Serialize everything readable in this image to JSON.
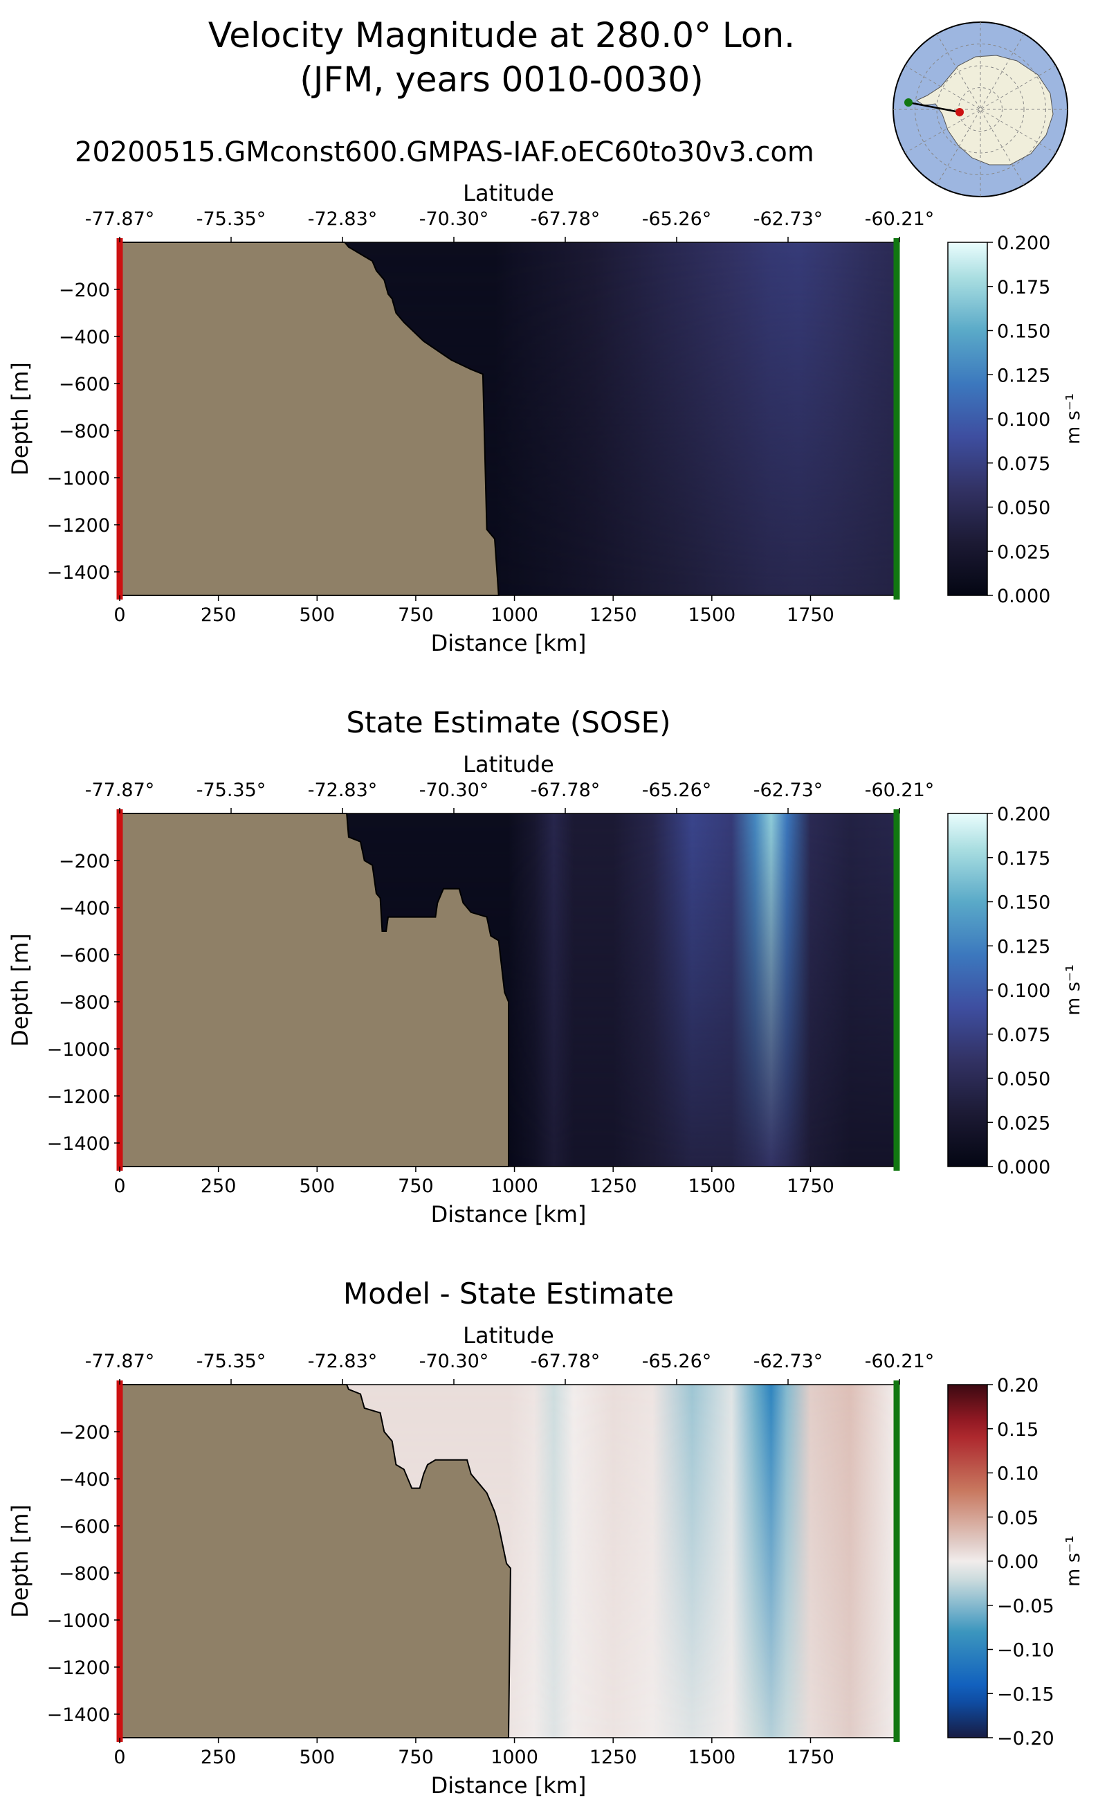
{
  "figure": {
    "title_line1": "Velocity Magnitude at 280.0° Lon.",
    "title_line2": "(JFM, years 0010-0030)",
    "run_name": "20200515.GMconst600.GMPAS-IAF.oEC60to30v3.com",
    "colors": {
      "land": "#8f8067",
      "left_marker": "#cc1111",
      "right_marker": "#117711",
      "inset_ocean": "#9db6e0",
      "inset_land": "#f0eedb"
    }
  },
  "map_inset": {
    "type": "polar-stereographic",
    "section_start_marker": "red",
    "section_end_marker": "green"
  },
  "chart_data": [
    {
      "type": "heatmap",
      "title": "",
      "xlabel": "Distance [km]",
      "ylabel": "Depth [m]",
      "top_axis_label": "Latitude",
      "xlim": [
        0,
        1970
      ],
      "ylim": [
        -1500,
        0
      ],
      "x_ticks": [
        0,
        250,
        500,
        750,
        1000,
        1250,
        1500,
        1750
      ],
      "y_ticks": [
        -200,
        -400,
        -600,
        -800,
        -1000,
        -1200,
        -1400
      ],
      "top_ticks": [
        "-77.87°",
        "-75.35°",
        "-72.83°",
        "-70.30°",
        "-67.78°",
        "-65.26°",
        "-62.73°",
        "-60.21°"
      ],
      "colorbar": {
        "label": "m s⁻¹",
        "colormap": "ice",
        "range": [
          0.0,
          0.2
        ],
        "ticks": [
          "0.000",
          "0.025",
          "0.050",
          "0.075",
          "0.100",
          "0.125",
          "0.150",
          "0.175",
          "0.200"
        ]
      },
      "bathymetry": [
        [
          0,
          0
        ],
        [
          570,
          0
        ],
        [
          580,
          -20
        ],
        [
          620,
          -60
        ],
        [
          640,
          -80
        ],
        [
          650,
          -120
        ],
        [
          670,
          -160
        ],
        [
          680,
          -220
        ],
        [
          690,
          -240
        ],
        [
          700,
          -300
        ],
        [
          720,
          -340
        ],
        [
          770,
          -420
        ],
        [
          840,
          -500
        ],
        [
          890,
          -540
        ],
        [
          920,
          -560
        ],
        [
          930,
          -1220
        ],
        [
          950,
          -1260
        ],
        [
          960,
          -1500
        ]
      ],
      "field_profile": {
        "x": [
          950,
          1000,
          1200,
          1400,
          1550,
          1650,
          1720,
          1800,
          1900,
          1965
        ],
        "surface": [
          0.01,
          0.015,
          0.03,
          0.048,
          0.06,
          0.068,
          0.07,
          0.064,
          0.055,
          0.05
        ],
        "bottom": [
          0.008,
          0.01,
          0.02,
          0.032,
          0.04,
          0.045,
          0.046,
          0.045,
          0.042,
          0.04
        ]
      }
    },
    {
      "type": "heatmap",
      "title": "State Estimate (SOSE)",
      "xlabel": "Distance [km]",
      "ylabel": "Depth [m]",
      "top_axis_label": "Latitude",
      "xlim": [
        0,
        1970
      ],
      "ylim": [
        -1500,
        0
      ],
      "x_ticks": [
        0,
        250,
        500,
        750,
        1000,
        1250,
        1500,
        1750
      ],
      "y_ticks": [
        -200,
        -400,
        -600,
        -800,
        -1000,
        -1200,
        -1400
      ],
      "top_ticks": [
        "-77.87°",
        "-75.35°",
        "-72.83°",
        "-70.30°",
        "-67.78°",
        "-65.26°",
        "-62.73°",
        "-60.21°"
      ],
      "colorbar": {
        "label": "m s⁻¹",
        "colormap": "ice",
        "range": [
          0.0,
          0.2
        ],
        "ticks": [
          "0.000",
          "0.025",
          "0.050",
          "0.075",
          "0.100",
          "0.125",
          "0.150",
          "0.175",
          "0.200"
        ]
      },
      "bathymetry": [
        [
          0,
          0
        ],
        [
          575,
          0
        ],
        [
          580,
          -100
        ],
        [
          610,
          -120
        ],
        [
          620,
          -200
        ],
        [
          640,
          -220
        ],
        [
          650,
          -340
        ],
        [
          660,
          -360
        ],
        [
          665,
          -500
        ],
        [
          675,
          -500
        ],
        [
          680,
          -440
        ],
        [
          800,
          -440
        ],
        [
          805,
          -380
        ],
        [
          820,
          -320
        ],
        [
          860,
          -320
        ],
        [
          870,
          -380
        ],
        [
          890,
          -420
        ],
        [
          930,
          -440
        ],
        [
          940,
          -520
        ],
        [
          960,
          -540
        ],
        [
          975,
          -760
        ],
        [
          985,
          -800
        ],
        [
          985,
          -1500
        ]
      ],
      "field_profile": {
        "x": [
          985,
          1050,
          1100,
          1150,
          1250,
          1350,
          1450,
          1550,
          1610,
          1650,
          1690,
          1750,
          1850,
          1965
        ],
        "surface": [
          0.01,
          0.025,
          0.045,
          0.03,
          0.03,
          0.045,
          0.08,
          0.07,
          0.13,
          0.17,
          0.12,
          0.05,
          0.04,
          0.045
        ],
        "bottom": [
          0.005,
          0.015,
          0.03,
          0.02,
          0.02,
          0.03,
          0.04,
          0.04,
          0.05,
          0.06,
          0.05,
          0.03,
          0.02,
          0.02
        ]
      }
    },
    {
      "type": "heatmap",
      "title": "Model - State Estimate",
      "xlabel": "Distance [km]",
      "ylabel": "Depth [m]",
      "top_axis_label": "Latitude",
      "xlim": [
        0,
        1970
      ],
      "ylim": [
        -1500,
        0
      ],
      "x_ticks": [
        0,
        250,
        500,
        750,
        1000,
        1250,
        1500,
        1750
      ],
      "y_ticks": [
        -200,
        -400,
        -600,
        -800,
        -1000,
        -1200,
        -1400
      ],
      "top_ticks": [
        "-77.87°",
        "-75.35°",
        "-72.83°",
        "-70.30°",
        "-67.78°",
        "-65.26°",
        "-62.73°",
        "-60.21°"
      ],
      "colorbar": {
        "label": "m s⁻¹",
        "colormap": "balance",
        "range": [
          -0.2,
          0.2
        ],
        "ticks": [
          "−0.20",
          "−0.15",
          "−0.10",
          "−0.05",
          "0.00",
          "0.05",
          "0.10",
          "0.15",
          "0.20"
        ]
      },
      "bathymetry": [
        [
          0,
          0
        ],
        [
          575,
          0
        ],
        [
          580,
          -20
        ],
        [
          610,
          -40
        ],
        [
          620,
          -100
        ],
        [
          660,
          -120
        ],
        [
          670,
          -200
        ],
        [
          690,
          -240
        ],
        [
          700,
          -340
        ],
        [
          720,
          -360
        ],
        [
          740,
          -440
        ],
        [
          760,
          -440
        ],
        [
          770,
          -380
        ],
        [
          780,
          -340
        ],
        [
          800,
          -320
        ],
        [
          880,
          -320
        ],
        [
          890,
          -380
        ],
        [
          910,
          -420
        ],
        [
          930,
          -460
        ],
        [
          950,
          -540
        ],
        [
          960,
          -600
        ],
        [
          980,
          -760
        ],
        [
          990,
          -780
        ],
        [
          985,
          -1500
        ]
      ],
      "field_profile": {
        "x": [
          985,
          1050,
          1100,
          1150,
          1250,
          1350,
          1450,
          1550,
          1610,
          1650,
          1690,
          1750,
          1850,
          1965
        ],
        "surface": [
          0.01,
          0.005,
          -0.02,
          0.0,
          0.01,
          0.005,
          -0.04,
          -0.01,
          -0.06,
          -0.1,
          -0.05,
          0.02,
          0.03,
          0.0
        ],
        "bottom": [
          0.005,
          0.0,
          -0.01,
          0.0,
          0.005,
          0.0,
          -0.01,
          0.0,
          -0.02,
          -0.03,
          -0.02,
          0.01,
          0.02,
          0.0
        ]
      }
    }
  ]
}
